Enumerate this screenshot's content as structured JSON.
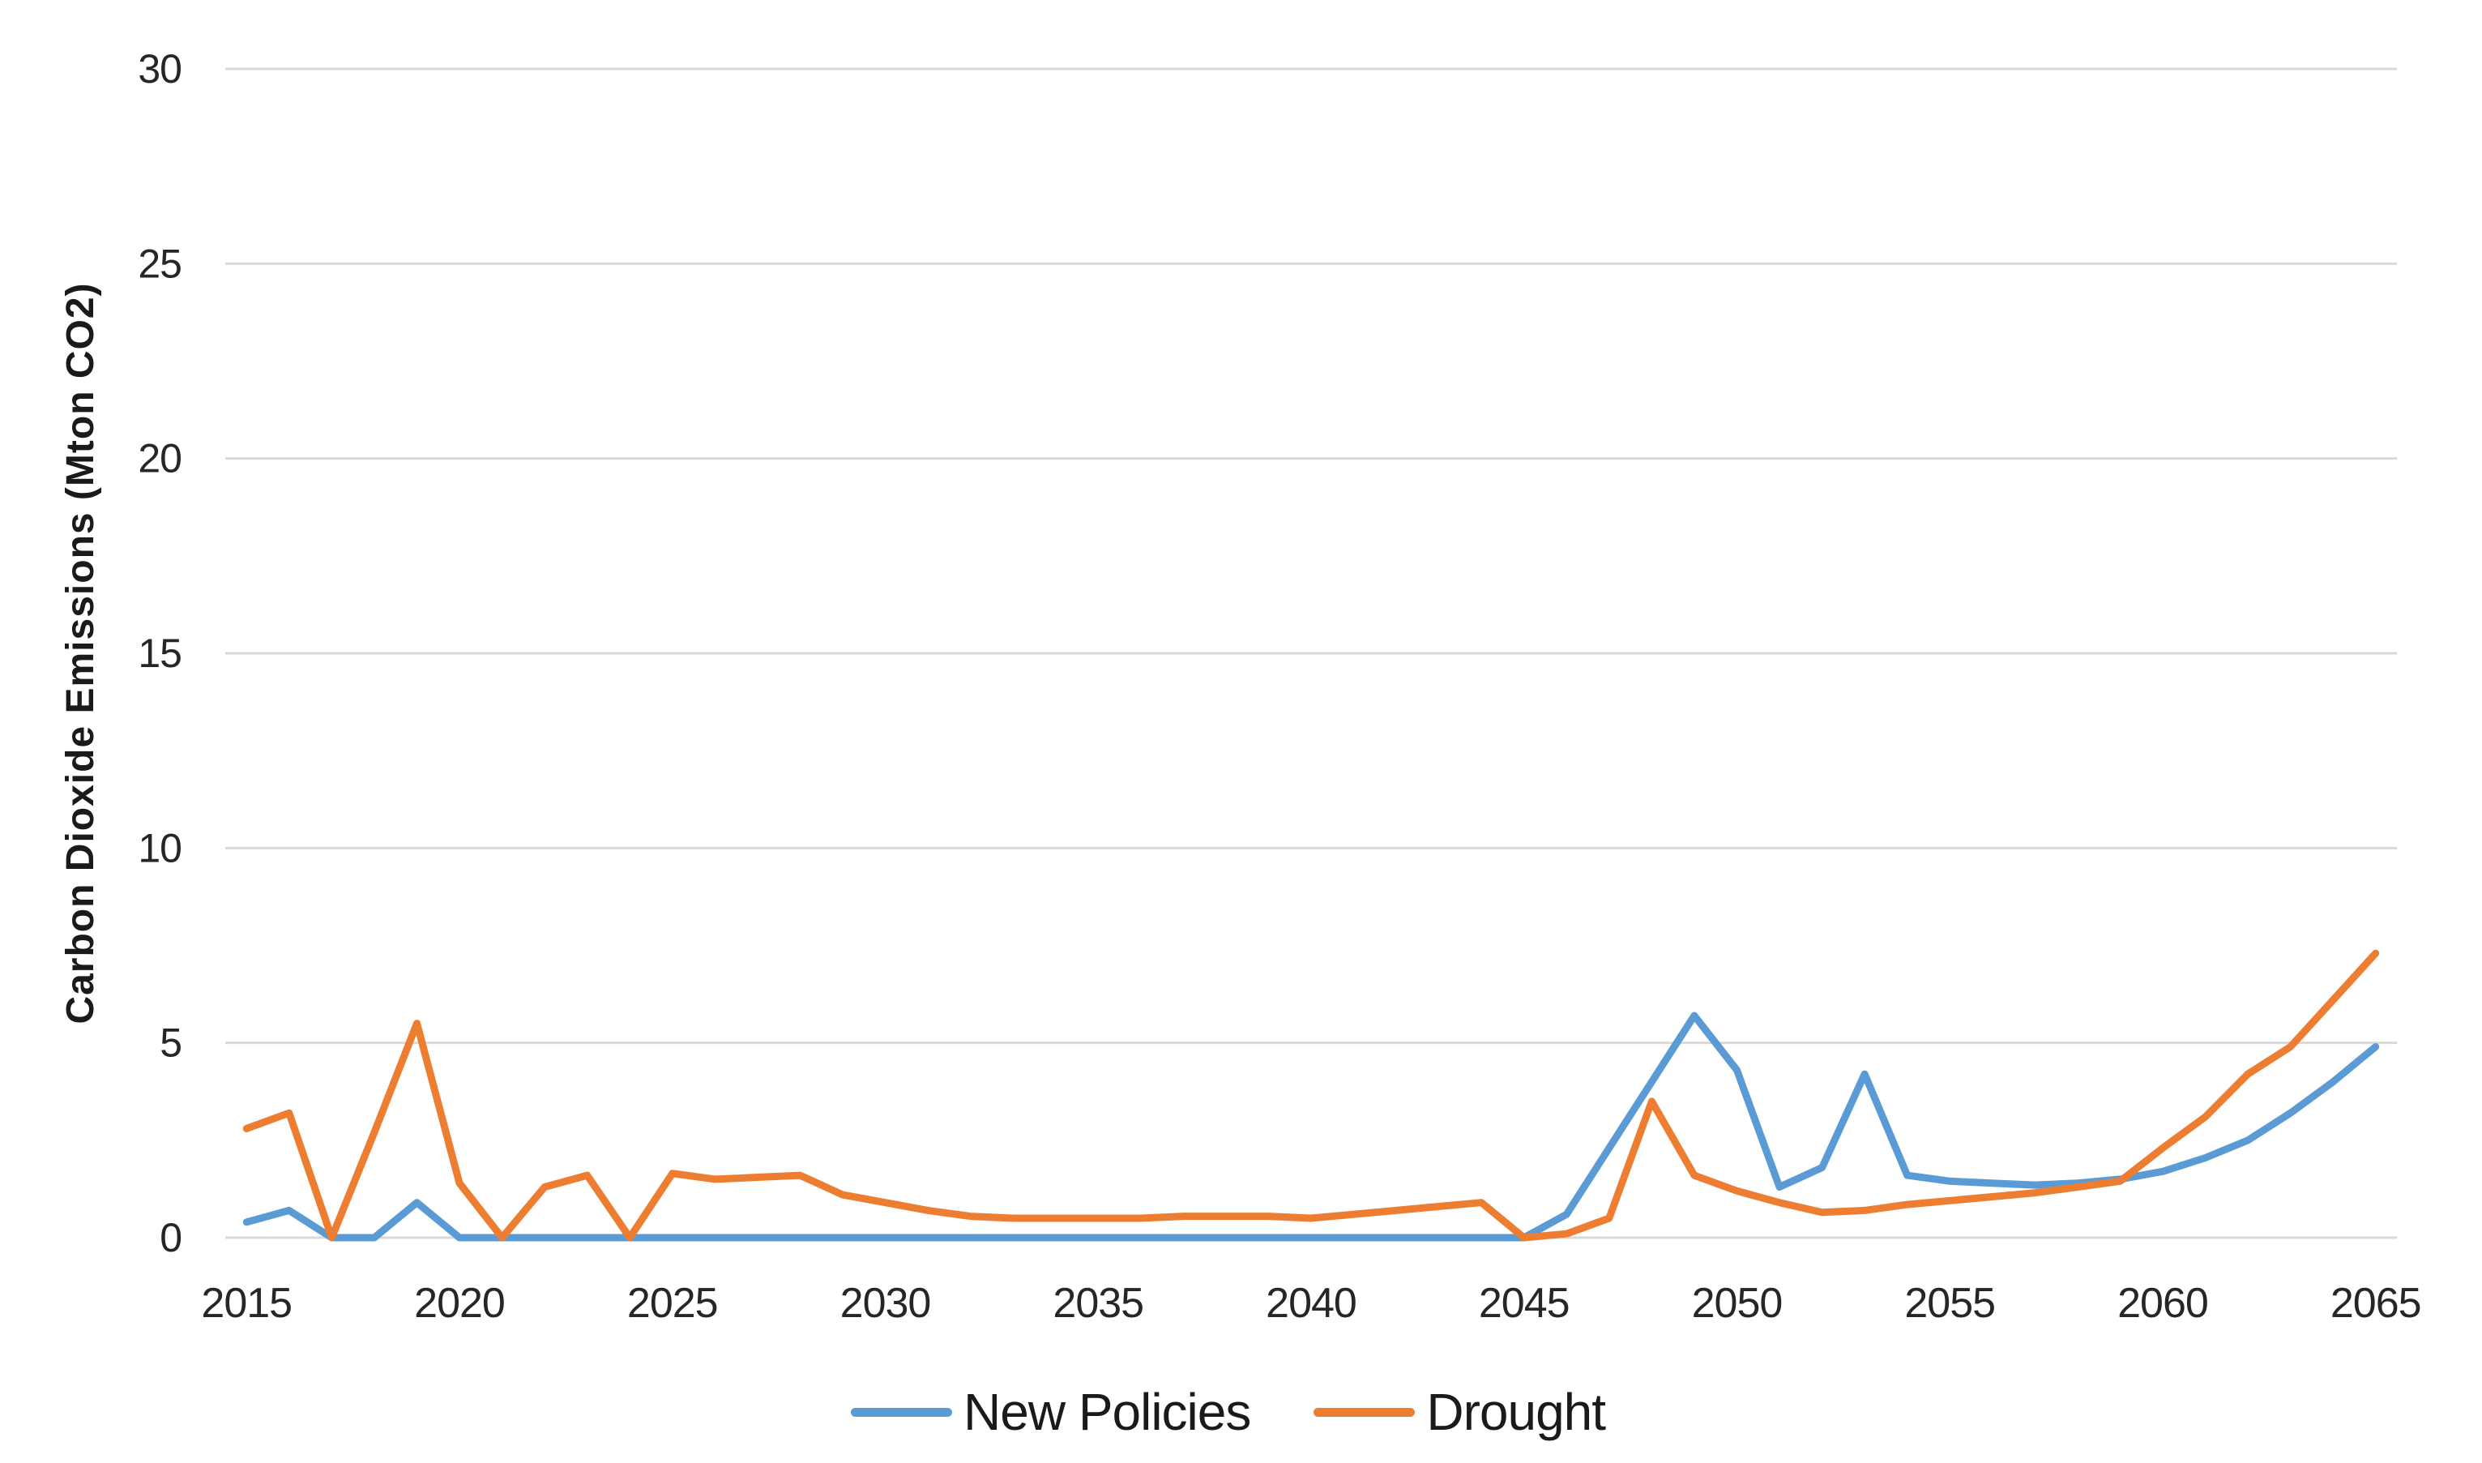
{
  "chart_data": {
    "type": "line",
    "title": "",
    "xlabel": "",
    "ylabel": "Carbon Dioxide Emissions (Mton CO2)",
    "ylim": [
      0,
      30
    ],
    "grid": "horizontal",
    "legend_position": "bottom-center",
    "x": [
      2015,
      2016,
      2017,
      2018,
      2019,
      2020,
      2021,
      2022,
      2023,
      2024,
      2025,
      2026,
      2027,
      2028,
      2029,
      2030,
      2031,
      2032,
      2033,
      2034,
      2035,
      2036,
      2037,
      2038,
      2039,
      2040,
      2041,
      2042,
      2043,
      2044,
      2045,
      2046,
      2047,
      2048,
      2049,
      2050,
      2051,
      2052,
      2053,
      2054,
      2055,
      2056,
      2057,
      2058,
      2059,
      2060,
      2061,
      2062,
      2063,
      2064,
      2065
    ],
    "x_ticks": [
      2015,
      2020,
      2025,
      2030,
      2035,
      2040,
      2045,
      2050,
      2055,
      2060,
      2065
    ],
    "y_ticks": [
      0,
      5,
      10,
      15,
      20,
      25,
      30
    ],
    "series": [
      {
        "name": "New Policies",
        "color": "#5B9BD5",
        "values": [
          0.4,
          0.7,
          0,
          0,
          0.9,
          0,
          0,
          0,
          0,
          0,
          0,
          0,
          0,
          0,
          0,
          0,
          0,
          0,
          0,
          0,
          0,
          0,
          0,
          0,
          0,
          0,
          0,
          0,
          0,
          0,
          0,
          0.6,
          2.3,
          4.0,
          5.7,
          4.3,
          1.3,
          1.8,
          4.2,
          1.6,
          1.45,
          1.4,
          1.35,
          1.4,
          1.5,
          1.7,
          2.05,
          2.5,
          3.2,
          4.0,
          4.9
        ]
      },
      {
        "name": "Drought",
        "color": "#ED7D31",
        "values": [
          2.8,
          3.2,
          0,
          2.7,
          5.5,
          1.4,
          0,
          1.3,
          1.6,
          0,
          1.65,
          1.5,
          1.55,
          1.6,
          1.1,
          0.9,
          0.7,
          0.55,
          0.5,
          0.5,
          0.5,
          0.5,
          0.55,
          0.55,
          0.55,
          0.5,
          0.6,
          0.7,
          0.8,
          0.9,
          0,
          0.1,
          0.5,
          3.5,
          1.6,
          1.2,
          0.9,
          0.65,
          0.7,
          0.85,
          0.95,
          1.05,
          1.15,
          1.3,
          1.45,
          2.3,
          3.1,
          4.2,
          4.9,
          6.1,
          7.3
        ]
      }
    ],
    "colors": {
      "gridline": "#D9D9D9",
      "tick_text": "#262626",
      "axis_title_text": "#1A1A1A",
      "background": "#FFFFFF"
    }
  }
}
